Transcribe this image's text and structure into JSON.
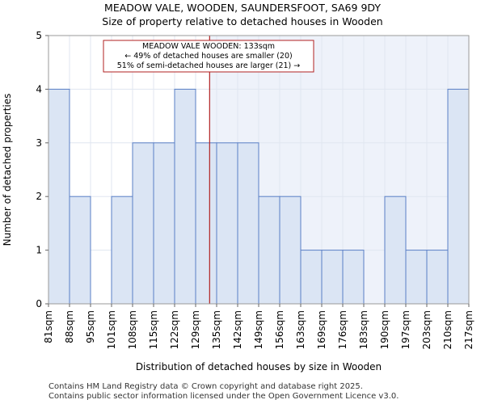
{
  "title_line1": "MEADOW VALE, WOODEN, SAUNDERSFOOT, SA69 9DY",
  "title_line2": "Size of property relative to detached houses in Wooden",
  "footer_line1": "Contains HM Land Registry data © Crown copyright and database right 2025.",
  "footer_line2": "Contains public sector information licensed under the Open Government Licence v3.0.",
  "chart_data": {
    "type": "bar",
    "xlabel": "Distribution of detached houses by size in Wooden",
    "ylabel": "Number of detached properties",
    "ylim": [
      0,
      5
    ],
    "yticks": [
      0,
      1,
      2,
      3,
      4,
      5
    ],
    "grid": true,
    "bin_edges": [
      81,
      88,
      95,
      101,
      108,
      115,
      122,
      129,
      135,
      142,
      149,
      156,
      163,
      169,
      176,
      183,
      190,
      197,
      203,
      210,
      217
    ],
    "tick_labels": [
      "81sqm",
      "88sqm",
      "95sqm",
      "101sqm",
      "108sqm",
      "115sqm",
      "122sqm",
      "129sqm",
      "135sqm",
      "142sqm",
      "149sqm",
      "156sqm",
      "163sqm",
      "169sqm",
      "176sqm",
      "183sqm",
      "190sqm",
      "197sqm",
      "203sqm",
      "210sqm",
      "217sqm"
    ],
    "values": [
      4,
      2,
      0,
      2,
      3,
      3,
      4,
      3,
      3,
      3,
      2,
      2,
      1,
      1,
      1,
      0,
      2,
      1,
      1,
      4
    ],
    "marker": {
      "value": 133,
      "lines": [
        "MEADOW VALE WOODEN: 133sqm",
        "← 49% of detached houses are smaller (20)",
        "51% of semi-detached houses are larger (21) →"
      ]
    },
    "colors": {
      "bar_fill": "#dbe5f4",
      "bar_edge": "#5a7fc6",
      "marker": "#b22222",
      "grid": "#e0e6f0",
      "shade": "#eef2fa"
    }
  }
}
